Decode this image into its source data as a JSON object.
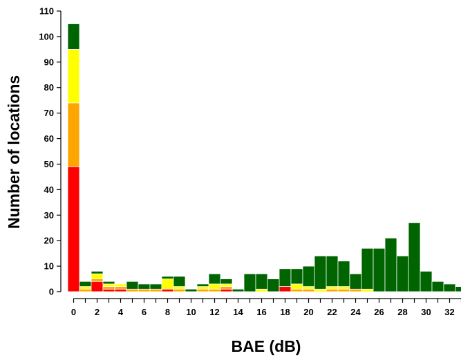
{
  "chart_data": {
    "type": "bar",
    "stacked": true,
    "title": "",
    "xlabel": "BAE (dB)",
    "ylabel": "Number of locations",
    "ylim": [
      0,
      110
    ],
    "y_ticks": [
      "0",
      "10",
      "20",
      "30",
      "40",
      "50",
      "60",
      "70",
      "80",
      "90",
      "100",
      "110"
    ],
    "x_ticks": [
      "0",
      "2",
      "4",
      "6",
      "8",
      "10",
      "12",
      "14",
      "16",
      "18",
      "20",
      "22",
      "24",
      "26",
      "28",
      "30",
      "32"
    ],
    "grid": false,
    "categories": [
      0,
      1,
      2,
      3,
      4,
      5,
      6,
      7,
      8,
      9,
      10,
      11,
      12,
      13,
      14,
      15,
      16,
      17,
      18,
      19,
      20,
      21,
      22,
      23,
      24,
      25,
      26,
      27,
      28,
      29,
      30,
      31,
      32,
      33
    ],
    "series": [
      {
        "color": "#ff0000",
        "values": [
          49,
          0,
          4,
          1,
          1,
          0,
          0,
          0,
          1,
          0,
          0,
          0,
          0,
          1,
          0,
          0,
          0,
          0,
          2,
          0,
          0,
          0,
          0,
          0,
          0,
          0,
          0,
          0,
          0,
          0,
          0,
          0,
          0,
          0
        ]
      },
      {
        "color": "#ffa500",
        "values": [
          25,
          1,
          1,
          1,
          1,
          1,
          1,
          1,
          0,
          1,
          0,
          1,
          1,
          1,
          0,
          0,
          0,
          0,
          0,
          1,
          1,
          0,
          1,
          1,
          1,
          0,
          0,
          0,
          0,
          0,
          0,
          0,
          0,
          0
        ]
      },
      {
        "color": "#ffff00",
        "values": [
          21,
          1,
          2,
          1,
          1,
          0,
          0,
          0,
          4,
          1,
          0,
          1,
          2,
          1,
          0,
          0,
          1,
          0,
          0,
          2,
          1,
          1,
          1,
          1,
          0,
          1,
          0,
          0,
          0,
          0,
          0,
          0,
          0,
          0
        ]
      },
      {
        "color": "#006400",
        "values": [
          10,
          2,
          1,
          1,
          0,
          3,
          2,
          2,
          1,
          4,
          1,
          1,
          4,
          2,
          1,
          7,
          6,
          5,
          7,
          6,
          8,
          13,
          12,
          10,
          6,
          16,
          17,
          21,
          14,
          27,
          8,
          4,
          3,
          2
        ]
      }
    ]
  }
}
